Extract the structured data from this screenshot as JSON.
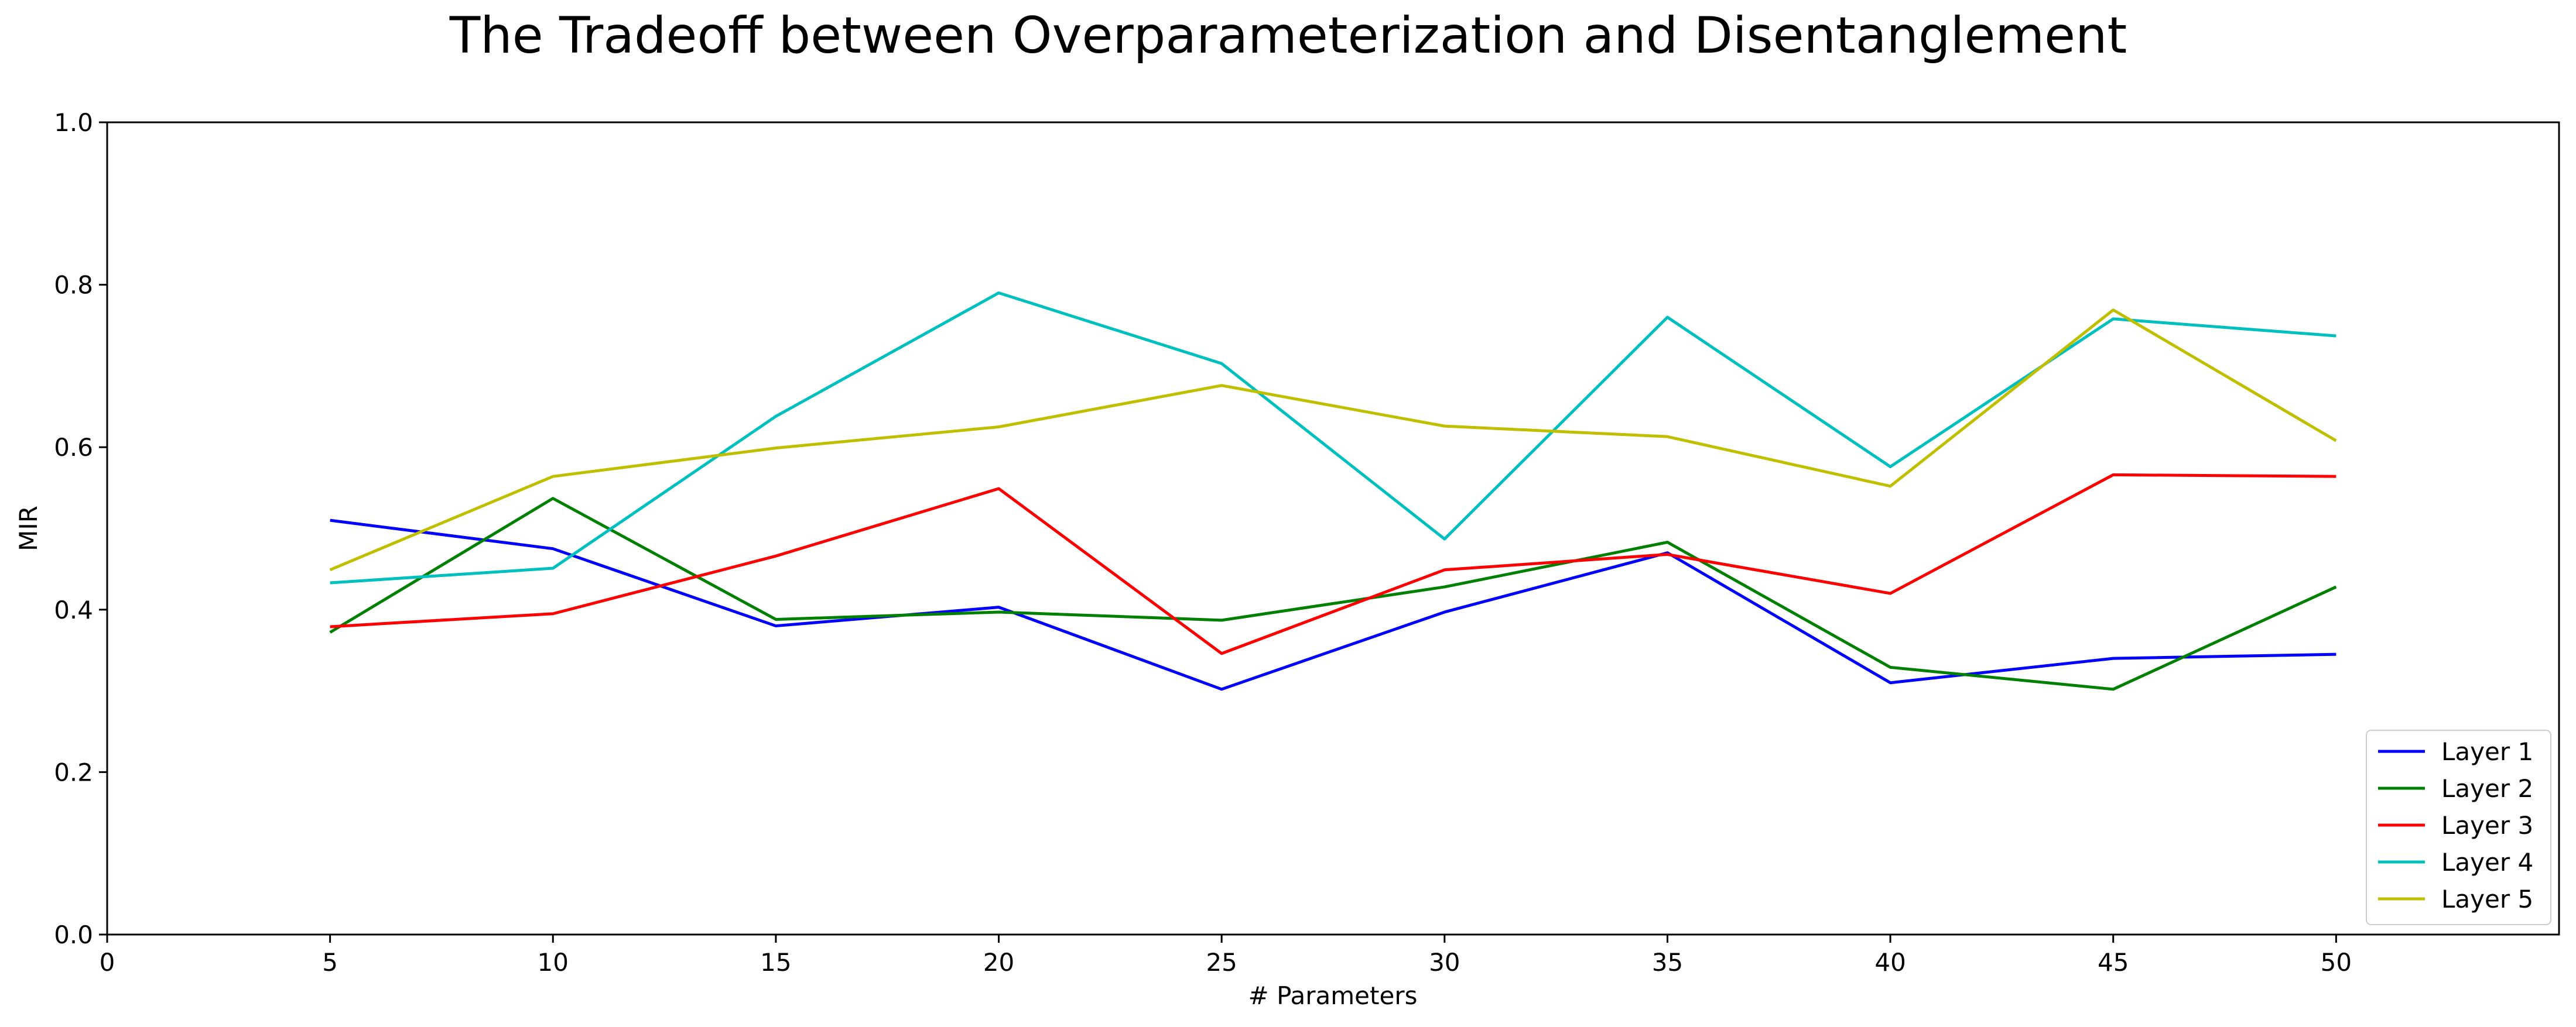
{
  "chart_data": {
    "type": "line",
    "title": "The Tradeoff between Overparameterization and Disentanglement",
    "xlabel": "# Parameters",
    "ylabel": "MIR",
    "x": [
      5,
      10,
      15,
      20,
      25,
      30,
      35,
      40,
      45,
      50
    ],
    "xlim": [
      0,
      55
    ],
    "ylim": [
      0,
      1.0
    ],
    "xticks": [
      "0",
      "5",
      "10",
      "15",
      "20",
      "25",
      "30",
      "35",
      "40",
      "45",
      "50"
    ],
    "yticks": [
      "0.0",
      "0.2",
      "0.4",
      "0.6",
      "0.8",
      "1.0"
    ],
    "grid": false,
    "legend_position": "bottom-right",
    "series": [
      {
        "name": "Layer 1",
        "color": "#0000ff",
        "values": [
          0.51,
          0.475,
          0.38,
          0.403,
          0.302,
          0.397,
          0.47,
          0.31,
          0.34,
          0.345
        ]
      },
      {
        "name": "Layer 2",
        "color": "#008000",
        "values": [
          0.372,
          0.537,
          0.388,
          0.397,
          0.387,
          0.428,
          0.483,
          0.329,
          0.302,
          0.428
        ]
      },
      {
        "name": "Layer 3",
        "color": "#ff0000",
        "values": [
          0.379,
          0.395,
          0.466,
          0.549,
          0.346,
          0.449,
          0.468,
          0.42,
          0.566,
          0.564
        ]
      },
      {
        "name": "Layer 4",
        "color": "#00bfbf",
        "values": [
          0.433,
          0.451,
          0.638,
          0.79,
          0.703,
          0.487,
          0.76,
          0.576,
          0.758,
          0.737
        ]
      },
      {
        "name": "Layer 5",
        "color": "#bfbf00",
        "values": [
          0.449,
          0.564,
          0.599,
          0.625,
          0.676,
          0.626,
          0.613,
          0.552,
          0.769,
          0.608
        ]
      }
    ]
  }
}
